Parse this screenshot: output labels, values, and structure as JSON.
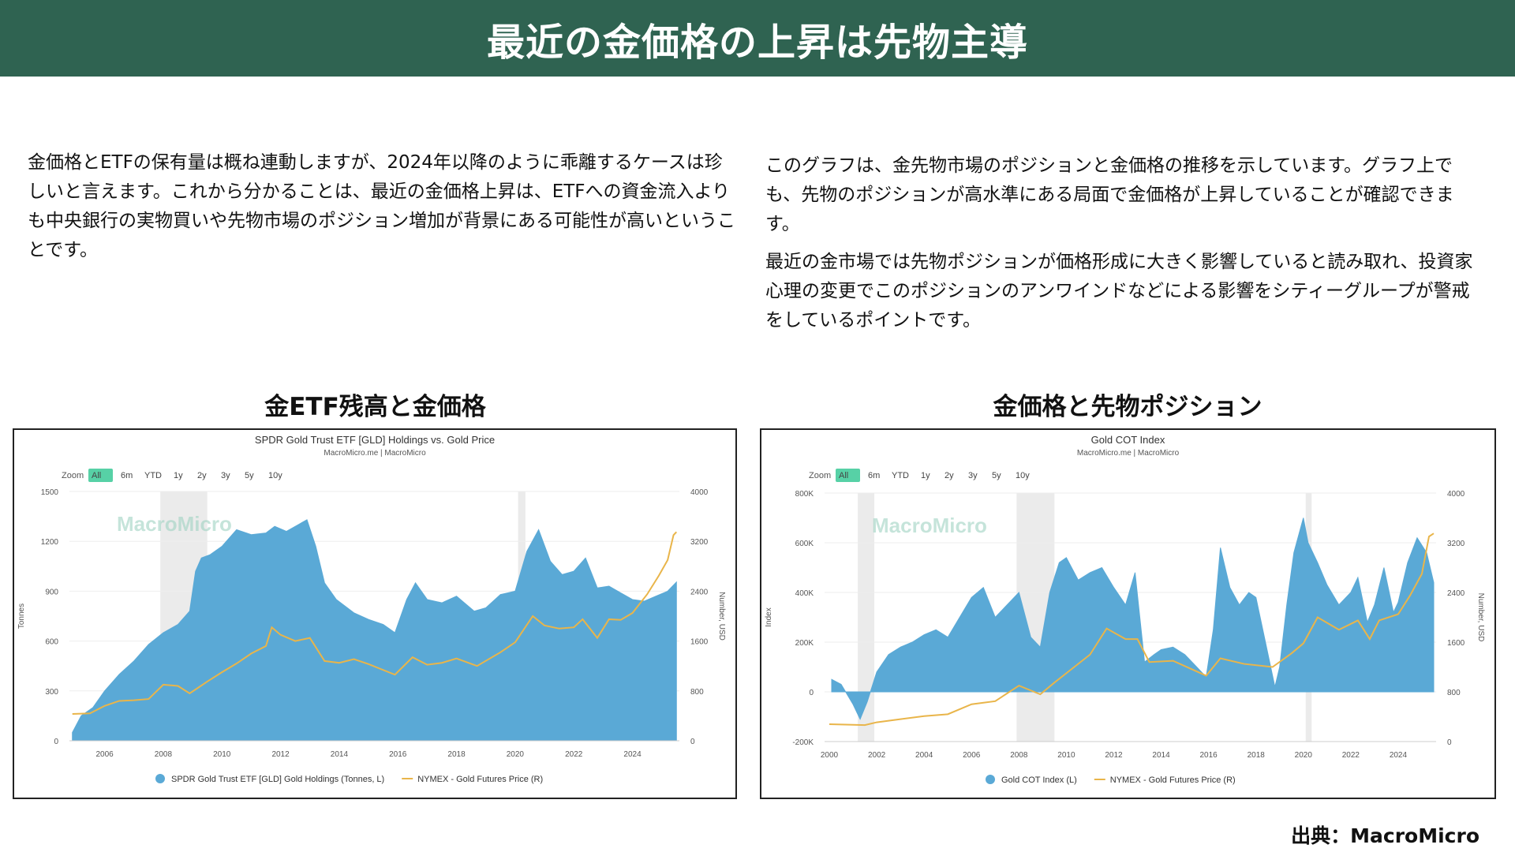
{
  "header": {
    "title": "最近の金価格の上昇は先物主導"
  },
  "text": {
    "left": "金価格とETFの保有量は概ね連動しますが、2024年以降のように乖離するケースは珍しいと言えます。これから分かることは、最近の金価格上昇は、ETFへの資金流入よりも中央銀行の実物買いや先物市場のポジション増加が背景にある可能性が高いということです。",
    "right1": "このグラフは、金先物市場のポジションと金価格の推移を示しています。グラフ上でも、先物のポジションが高水準にある局面で金価格が上昇していることが確認できます。",
    "right2": "最近の金市場では先物ポジションが価格形成に大きく影響していると読み取れ、投資家心理の変更でこのポジションのアンワインドなどによる影響をシティーグループが警戒をしているポイントです。"
  },
  "sections": {
    "left_title": "金ETF残高と金価格",
    "right_title": "金価格と先物ポジション"
  },
  "source": "出典：MacroMicro",
  "colors": {
    "banner": "#2f6351",
    "area": "#5aa9d6",
    "line": "#e9b54a",
    "shade": "#ebebeb",
    "zoom_active": "#57d1a6",
    "watermark": "#9fd3c3"
  },
  "chart_data": [
    {
      "type": "area",
      "title": "SPDR Gold Trust ETF [GLD] Holdings vs. Gold Price",
      "subtitle": "MacroMicro.me | MacroMicro",
      "watermark": "MacroMicro",
      "zoom": {
        "label": "Zoom",
        "options": [
          "All",
          "6m",
          "YTD",
          "1y",
          "2y",
          "3y",
          "5y",
          "10y"
        ],
        "selected": "All"
      },
      "xlabel": "",
      "ylabel_left": "Tonnes",
      "ylabel_right": "Number, USD",
      "xlim": [
        2004.8,
        2025.6
      ],
      "ylim_left": [
        0,
        1500
      ],
      "ylim_right": [
        0,
        4000
      ],
      "x_ticks": [
        "2006",
        "2008",
        "2010",
        "2012",
        "2014",
        "2016",
        "2018",
        "2020",
        "2022",
        "2024"
      ],
      "y_ticks_left": [
        "0",
        "300",
        "600",
        "900",
        "1200",
        "1500"
      ],
      "y_ticks_right": [
        "0",
        "800",
        "1600",
        "2400",
        "3200",
        "4000"
      ],
      "shaded_periods": [
        [
          2007.9,
          2009.5
        ],
        [
          2020.1,
          2020.35
        ]
      ],
      "legend_position": "bottom",
      "series": [
        {
          "name": "SPDR Gold Trust ETF [GLD] Gold Holdings (Tonnes, L)",
          "axis": "left",
          "kind": "area",
          "x": [
            2004.9,
            2005.2,
            2005.6,
            2006.0,
            2006.5,
            2007.0,
            2007.5,
            2008.0,
            2008.5,
            2008.9,
            2009.1,
            2009.3,
            2009.6,
            2010.0,
            2010.5,
            2011.0,
            2011.5,
            2011.8,
            2012.2,
            2012.6,
            2012.9,
            2013.2,
            2013.5,
            2013.9,
            2014.5,
            2015.0,
            2015.5,
            2015.9,
            2016.3,
            2016.6,
            2017.0,
            2017.5,
            2018.0,
            2018.6,
            2019.0,
            2019.5,
            2020.0,
            2020.4,
            2020.8,
            2021.2,
            2021.6,
            2022.0,
            2022.4,
            2022.8,
            2023.2,
            2023.6,
            2024.0,
            2024.4,
            2024.8,
            2025.2,
            2025.5
          ],
          "values": [
            50,
            150,
            200,
            300,
            400,
            480,
            580,
            650,
            700,
            780,
            1020,
            1100,
            1120,
            1170,
            1270,
            1240,
            1250,
            1290,
            1260,
            1300,
            1330,
            1170,
            950,
            850,
            770,
            730,
            700,
            650,
            850,
            950,
            850,
            830,
            870,
            780,
            800,
            880,
            900,
            1140,
            1270,
            1080,
            1000,
            1020,
            1100,
            920,
            930,
            890,
            850,
            840,
            870,
            900,
            955
          ]
        },
        {
          "name": "NYMEX - Gold Futures Price (R)",
          "axis": "right",
          "kind": "line",
          "x": [
            2004.9,
            2005.5,
            2006.0,
            2006.5,
            2007.0,
            2007.5,
            2008.0,
            2008.5,
            2008.9,
            2009.5,
            2010.0,
            2010.5,
            2011.0,
            2011.5,
            2011.7,
            2012.0,
            2012.5,
            2013.0,
            2013.5,
            2014.0,
            2014.5,
            2015.0,
            2015.9,
            2016.5,
            2017.0,
            2017.5,
            2018.0,
            2018.7,
            2019.5,
            2020.0,
            2020.6,
            2021.0,
            2021.5,
            2022.0,
            2022.3,
            2022.8,
            2023.2,
            2023.6,
            2024.0,
            2024.5,
            2024.9,
            2025.2,
            2025.4,
            2025.5
          ],
          "values": [
            430,
            440,
            560,
            640,
            650,
            670,
            900,
            880,
            760,
            950,
            1100,
            1240,
            1400,
            1520,
            1820,
            1700,
            1600,
            1650,
            1280,
            1250,
            1310,
            1230,
            1060,
            1340,
            1220,
            1250,
            1320,
            1200,
            1420,
            1580,
            2000,
            1850,
            1800,
            1820,
            1950,
            1650,
            1950,
            1940,
            2050,
            2350,
            2650,
            2900,
            3300,
            3350
          ]
        }
      ]
    },
    {
      "type": "area",
      "title": "Gold COT Index",
      "subtitle": "MacroMicro.me | MacroMicro",
      "watermark": "MacroMicro",
      "zoom": {
        "label": "Zoom",
        "options": [
          "All",
          "6m",
          "YTD",
          "1y",
          "2y",
          "3y",
          "5y",
          "10y"
        ],
        "selected": "All"
      },
      "xlabel": "",
      "ylabel_left": "Index",
      "ylabel_right": "Number, USD",
      "xlim": [
        1999.8,
        2025.6
      ],
      "ylim_left": [
        -200000,
        800000
      ],
      "ylim_right": [
        0,
        4000
      ],
      "x_ticks": [
        "2000",
        "2002",
        "2004",
        "2006",
        "2008",
        "2010",
        "2012",
        "2014",
        "2016",
        "2018",
        "2020",
        "2022",
        "2024"
      ],
      "y_ticks_left": [
        "-200K",
        "0",
        "200K",
        "400K",
        "600K",
        "800K"
      ],
      "y_ticks_right": [
        "0",
        "800",
        "1600",
        "2400",
        "3200",
        "4000"
      ],
      "shaded_periods": [
        [
          2001.2,
          2001.9
        ],
        [
          2007.9,
          2009.5
        ],
        [
          2020.1,
          2020.35
        ]
      ],
      "legend_position": "bottom",
      "series": [
        {
          "name": "Gold COT Index (L)",
          "axis": "left",
          "kind": "area",
          "x": [
            2000.1,
            2000.5,
            2001.0,
            2001.3,
            2001.6,
            2002.0,
            2002.5,
            2003.0,
            2003.5,
            2004.0,
            2004.5,
            2005.0,
            2005.5,
            2006.0,
            2006.5,
            2007.0,
            2007.5,
            2008.0,
            2008.5,
            2008.9,
            2009.3,
            2009.7,
            2010.0,
            2010.5,
            2011.0,
            2011.5,
            2012.0,
            2012.5,
            2012.9,
            2013.3,
            2013.7,
            2014.0,
            2014.5,
            2015.0,
            2015.5,
            2015.9,
            2016.2,
            2016.5,
            2016.9,
            2017.3,
            2017.7,
            2018.0,
            2018.4,
            2018.8,
            2019.0,
            2019.3,
            2019.6,
            2020.0,
            2020.2,
            2020.6,
            2021.0,
            2021.5,
            2022.0,
            2022.3,
            2022.7,
            2023.0,
            2023.4,
            2023.8,
            2024.0,
            2024.4,
            2024.8,
            2025.2,
            2025.5
          ],
          "values": [
            50000,
            30000,
            -50000,
            -110000,
            -40000,
            80000,
            150000,
            180000,
            200000,
            230000,
            250000,
            220000,
            300000,
            380000,
            420000,
            300000,
            350000,
            400000,
            220000,
            180000,
            400000,
            520000,
            540000,
            450000,
            480000,
            500000,
            420000,
            350000,
            480000,
            120000,
            150000,
            170000,
            180000,
            150000,
            100000,
            60000,
            250000,
            580000,
            420000,
            350000,
            400000,
            380000,
            200000,
            20000,
            100000,
            350000,
            560000,
            700000,
            600000,
            520000,
            430000,
            350000,
            400000,
            460000,
            280000,
            350000,
            500000,
            320000,
            360000,
            520000,
            620000,
            560000,
            440000
          ]
        },
        {
          "name": "NYMEX - Gold Futures Price (R)",
          "axis": "right",
          "kind": "line",
          "x": [
            2000.0,
            2001.0,
            2001.5,
            2002.0,
            2003.0,
            2004.0,
            2005.0,
            2006.0,
            2007.0,
            2008.0,
            2008.9,
            2009.5,
            2010.0,
            2011.0,
            2011.7,
            2012.5,
            2013.0,
            2013.5,
            2014.5,
            2015.9,
            2016.5,
            2017.5,
            2018.7,
            2019.5,
            2020.0,
            2020.6,
            2021.5,
            2022.3,
            2022.8,
            2023.2,
            2024.0,
            2024.5,
            2025.0,
            2025.3,
            2025.5
          ],
          "values": [
            280,
            270,
            265,
            310,
            360,
            410,
            440,
            600,
            650,
            900,
            760,
            950,
            1100,
            1400,
            1820,
            1650,
            1650,
            1280,
            1300,
            1060,
            1340,
            1250,
            1200,
            1420,
            1580,
            2000,
            1800,
            1950,
            1650,
            1950,
            2050,
            2350,
            2700,
            3300,
            3350
          ]
        }
      ]
    }
  ]
}
